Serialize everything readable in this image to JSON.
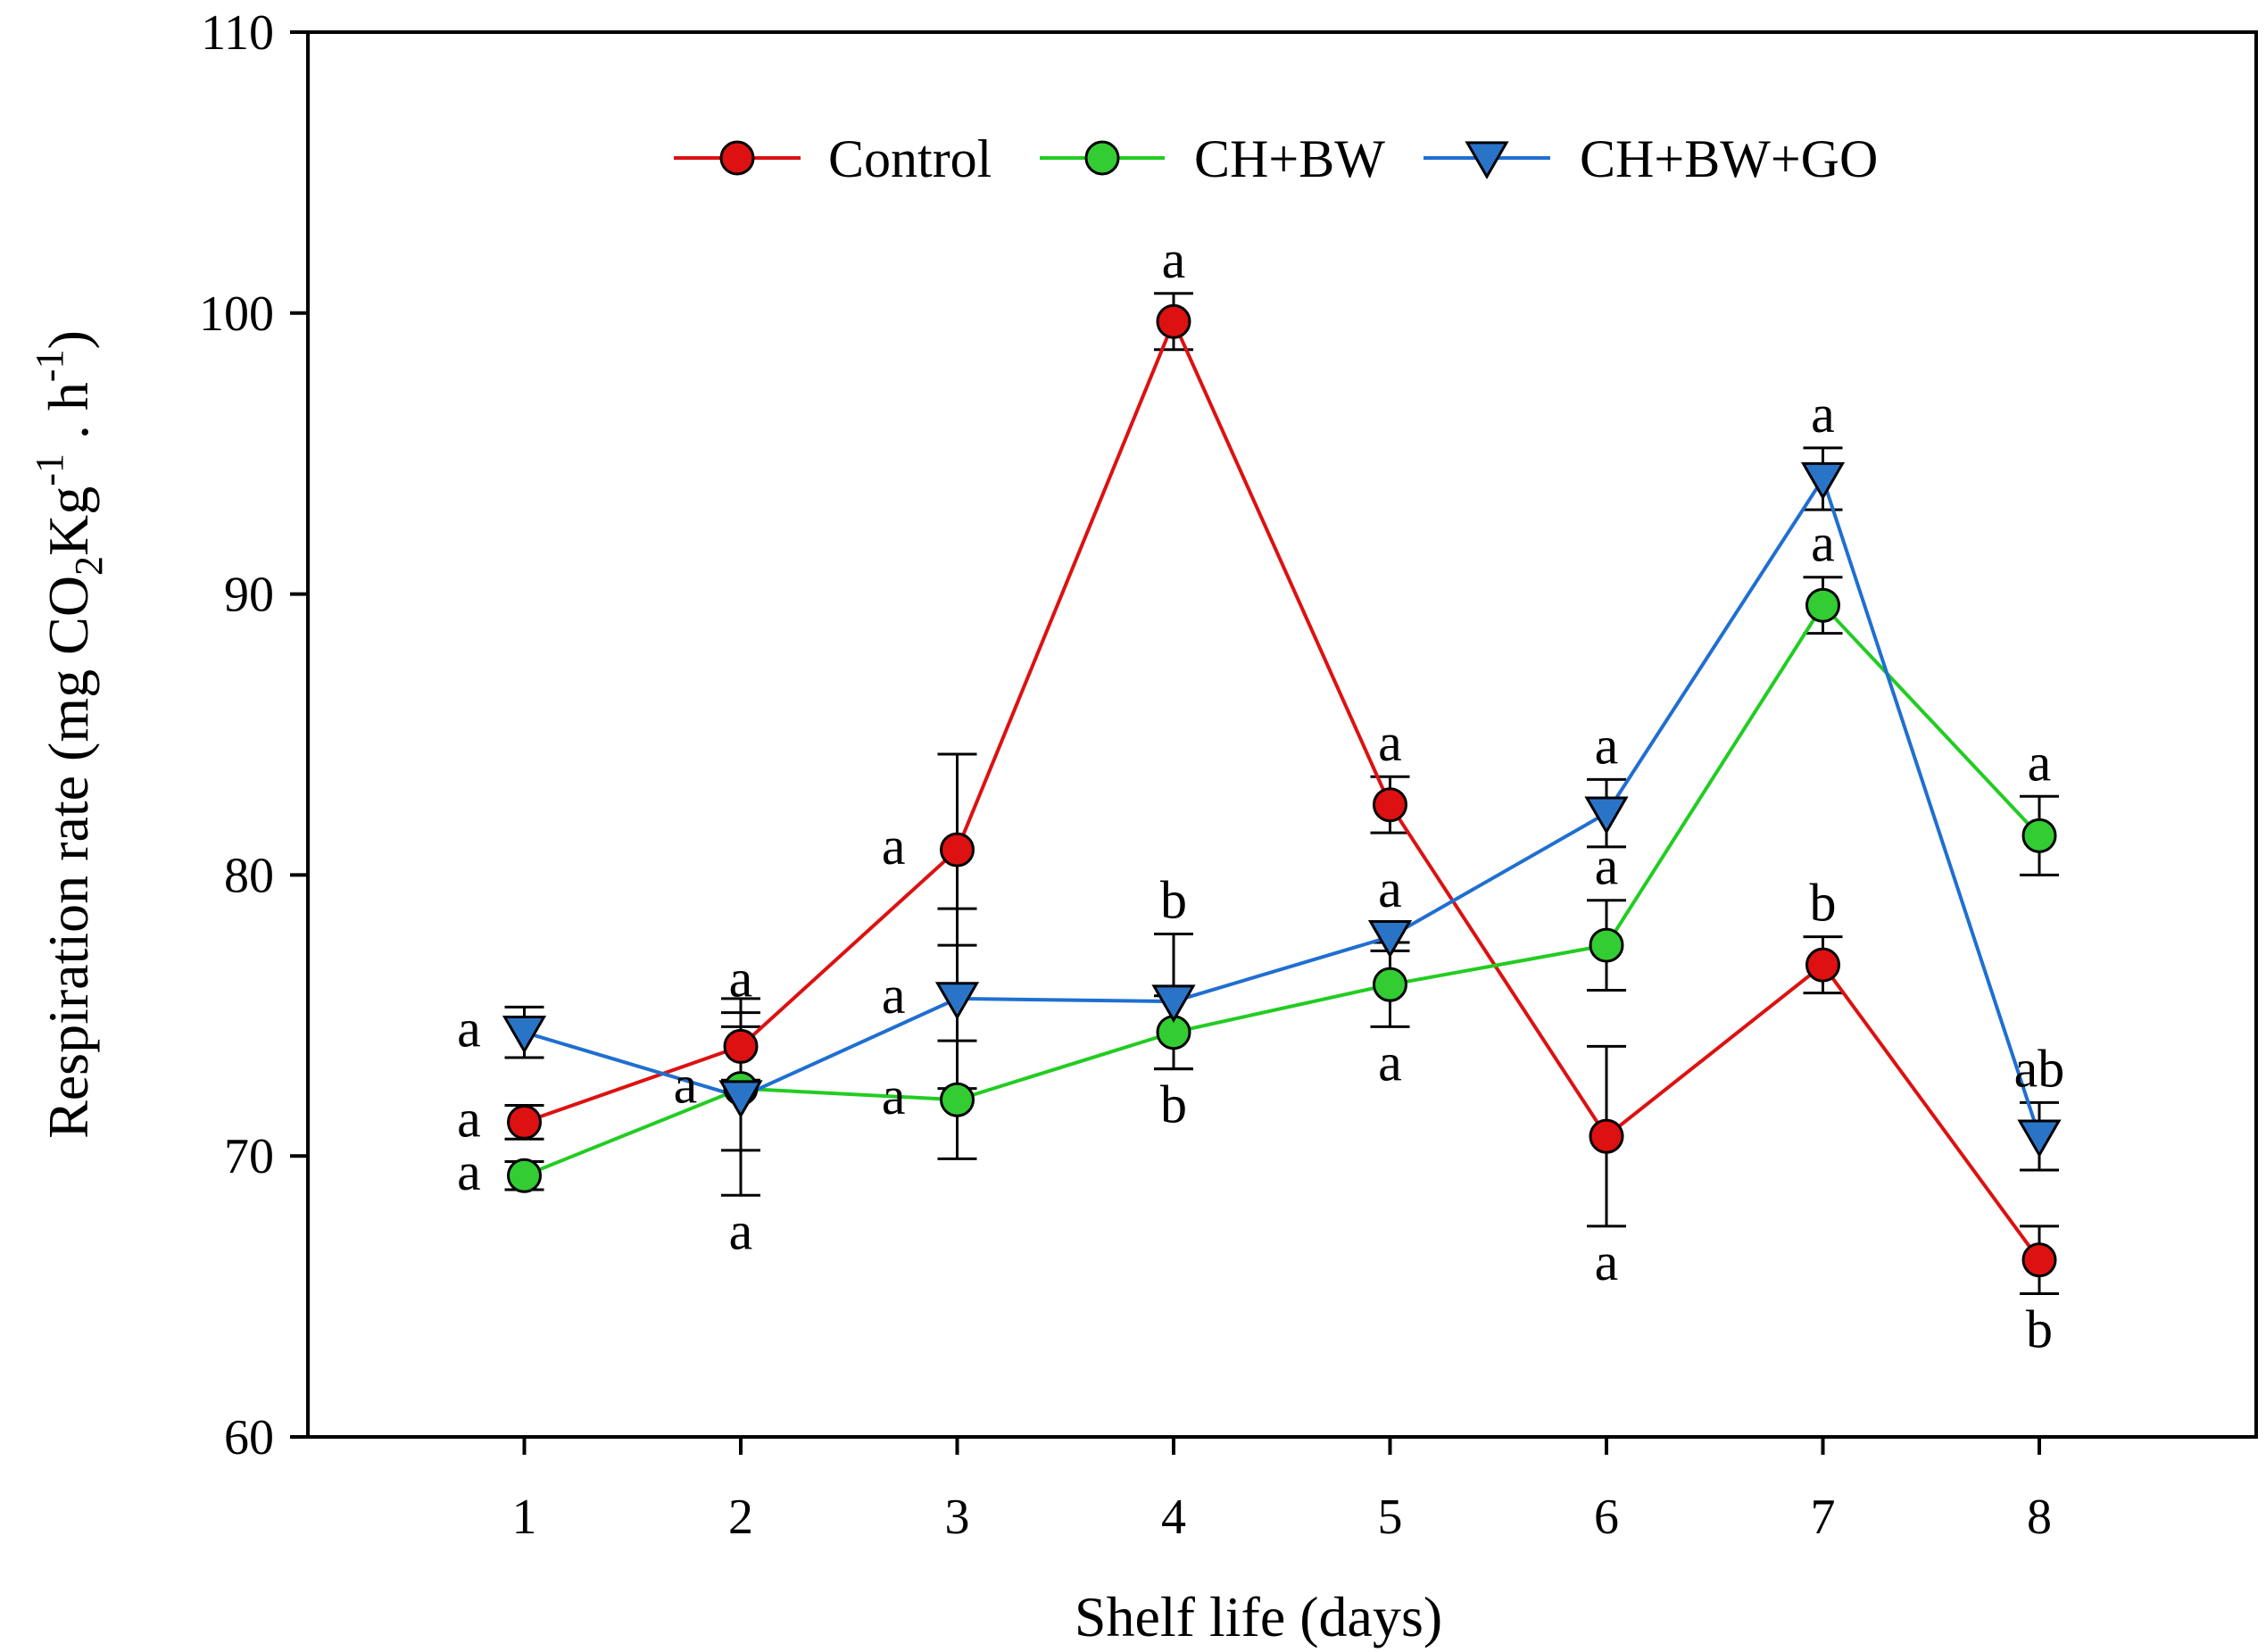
{
  "chart_data": {
    "type": "line",
    "title": "",
    "xlabel": "Shelf life (days)",
    "ylabel": {
      "prefix": "Respiration rate (mg CO",
      "sub": "2",
      "mid": "Kg",
      "sup1": "-1",
      "mid2": " . h",
      "sup2": "-1",
      "suffix": ")"
    },
    "xlim": [
      0,
      9
    ],
    "ylim": [
      60,
      110
    ],
    "x": [
      1,
      2,
      3,
      4,
      5,
      6,
      7,
      8
    ],
    "x_tick_labels": [
      "1",
      "2",
      "3",
      "4",
      "5",
      "6",
      "7",
      "8"
    ],
    "y_ticks": [
      60,
      70,
      80,
      90,
      100,
      110
    ],
    "y_tick_labels": [
      "60",
      "70",
      "80",
      "90",
      "100",
      "110"
    ],
    "legend_position": "top",
    "series": [
      {
        "name": "Control",
        "color": "#dd1111",
        "marker": "circle",
        "marker_fill": "#dd1111",
        "values": [
          71.2,
          73.9,
          80.9,
          99.7,
          82.5,
          70.7,
          76.8,
          66.3
        ],
        "errors": [
          0.6,
          1.2,
          3.4,
          1.0,
          1.0,
          3.2,
          1.0,
          1.2
        ],
        "letters": [
          "a",
          "a",
          "a",
          "a",
          "a",
          "a",
          "b",
          "b"
        ],
        "letter_side": [
          "left",
          "above",
          "left",
          "above",
          "above",
          "below",
          "above",
          "below"
        ]
      },
      {
        "name": "CH+BW",
        "color": "#22cc22",
        "marker": "circle",
        "marker_fill": "#33cc33",
        "values": [
          69.3,
          72.4,
          72.0,
          74.4,
          76.1,
          77.5,
          89.6,
          81.4
        ],
        "errors": [
          0.5,
          2.2,
          2.1,
          1.3,
          1.5,
          1.6,
          1.0,
          1.4
        ],
        "letters": [
          "a",
          "a",
          "a",
          "b",
          "a",
          "a",
          "a",
          "a"
        ],
        "letter_side": [
          "left",
          "left",
          "left",
          "below",
          "below",
          "above",
          "above",
          "above"
        ]
      },
      {
        "name": "CH+BW+GO",
        "color": "#1f6fd0",
        "marker": "triangle-down",
        "marker_fill": "#2a74c8",
        "values": [
          74.4,
          72.1,
          75.6,
          75.5,
          77.8,
          82.2,
          94.1,
          70.7
        ],
        "errors": [
          0.9,
          3.5,
          3.2,
          2.4,
          0.5,
          1.2,
          1.1,
          1.2
        ],
        "letters": [
          "a",
          "a",
          "a",
          "b",
          "a",
          "a",
          "a",
          "ab"
        ],
        "letter_side": [
          "left",
          "below",
          "left",
          "above",
          "above",
          "above",
          "above",
          "above"
        ]
      }
    ]
  }
}
